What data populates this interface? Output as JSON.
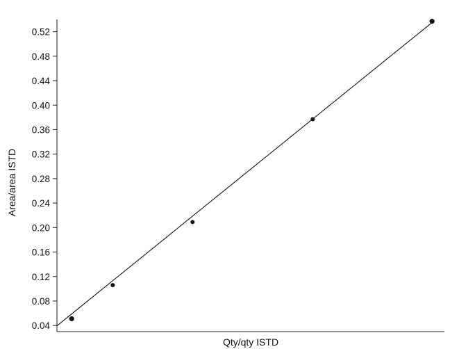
{
  "chart_data": {
    "type": "scatter",
    "title": "",
    "xlabel": "Qty/qty ISTD",
    "ylabel": "Area/area ISTD",
    "xlim": [
      0,
      1
    ],
    "ylim": [
      0.03,
      0.54
    ],
    "y_ticks": [
      "0.04",
      "0.08",
      "0.12",
      "0.16",
      "0.20",
      "0.24",
      "0.28",
      "0.32",
      "0.36",
      "0.40",
      "0.44",
      "0.48",
      "0.52"
    ],
    "x_ticks_shown": false,
    "grid": false,
    "series": [
      {
        "values": [
          {
            "x": 0.038,
            "y": 0.051
          },
          {
            "x": 0.144,
            "y": 0.106
          },
          {
            "x": 0.35,
            "y": 0.209
          },
          {
            "x": 0.66,
            "y": 0.377
          },
          {
            "x": 0.968,
            "y": 0.537
          }
        ]
      }
    ],
    "fit_line": {
      "x": [
        0.0,
        0.968
      ],
      "y": [
        0.0395,
        0.535
      ]
    }
  }
}
